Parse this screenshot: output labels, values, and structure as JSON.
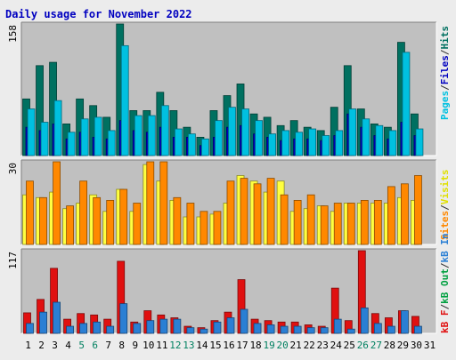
{
  "title": "Daily usage for November 2022",
  "colors": {
    "background": "#ececec",
    "plot_background": "#c0c0c0",
    "title": "#0000c0",
    "pages": "#00c0e0",
    "hits": "#007060",
    "visits": "#ffff40",
    "sites": "#ff8800",
    "kb_in": "#2a7fd4",
    "kb_out": "#00a040",
    "kb_f": "#e01010",
    "weekend_label": "#008060",
    "day_label": "#000000"
  },
  "legends": {
    "top": [
      {
        "text": "Pages",
        "color": "#00c0e0"
      },
      {
        "text": "/",
        "color": "#303030"
      },
      {
        "text": "Files",
        "color": "#0000c0"
      },
      {
        "text": "/",
        "color": "#303030"
      },
      {
        "text": "Hits",
        "color": "#007060"
      }
    ],
    "middle": [
      {
        "text": "Sites",
        "color": "#ff8800"
      },
      {
        "text": "/",
        "color": "#303030"
      },
      {
        "text": "Visits",
        "color": "#e0e000"
      }
    ],
    "bottom": [
      {
        "text": "kB F",
        "color": "#e01010"
      },
      {
        "text": "/",
        "color": "#303030"
      },
      {
        "text": "kB Out",
        "color": "#00a040"
      },
      {
        "text": "/",
        "color": "#303030"
      },
      {
        "text": "kB In",
        "color": "#2a7fd4"
      }
    ]
  },
  "chart_data": [
    {
      "type": "bar",
      "panel": "hits_files_pages",
      "max_label": "158",
      "ylim": [
        0,
        158
      ],
      "categories": [
        "1",
        "2",
        "3",
        "4",
        "5",
        "6",
        "7",
        "8",
        "9",
        "10",
        "11",
        "12",
        "13",
        "14",
        "15",
        "16",
        "17",
        "18",
        "19",
        "20",
        "21",
        "22",
        "23",
        "24",
        "25",
        "26",
        "27",
        "28",
        "29",
        "30",
        "31"
      ],
      "weekend_days": [
        "5",
        "6",
        "12",
        "13",
        "19",
        "20",
        "26",
        "27"
      ],
      "series": [
        {
          "name": "Hits",
          "values": [
            68,
            108,
            112,
            38,
            68,
            60,
            46,
            158,
            54,
            54,
            76,
            54,
            34,
            22,
            54,
            72,
            86,
            50,
            46,
            36,
            42,
            34,
            30,
            58,
            108,
            56,
            38,
            34,
            136,
            50,
            0
          ]
        },
        {
          "name": "Files",
          "values": [
            34,
            30,
            38,
            20,
            28,
            22,
            20,
            42,
            30,
            28,
            34,
            22,
            22,
            12,
            22,
            34,
            36,
            26,
            22,
            18,
            20,
            20,
            18,
            24,
            50,
            34,
            24,
            20,
            40,
            24,
            0
          ]
        },
        {
          "name": "Pages",
          "values": [
            56,
            40,
            66,
            28,
            44,
            46,
            30,
            132,
            48,
            48,
            60,
            32,
            26,
            20,
            42,
            58,
            56,
            42,
            26,
            30,
            28,
            32,
            24,
            30,
            56,
            44,
            36,
            30,
            124,
            32,
            0
          ]
        }
      ]
    },
    {
      "type": "bar",
      "panel": "visits_sites",
      "max_label": "30",
      "ylim": [
        0,
        30
      ],
      "categories": [
        "1",
        "2",
        "3",
        "4",
        "5",
        "6",
        "7",
        "8",
        "9",
        "10",
        "11",
        "12",
        "13",
        "14",
        "15",
        "16",
        "17",
        "18",
        "19",
        "20",
        "21",
        "22",
        "23",
        "24",
        "25",
        "26",
        "27",
        "28",
        "29",
        "30",
        "31"
      ],
      "series": [
        {
          "name": "Visits",
          "values": [
            18,
            17,
            19,
            13,
            15,
            18,
            12,
            20,
            12,
            29,
            23,
            16,
            10,
            10,
            11,
            15,
            25,
            23,
            19,
            23,
            12,
            13,
            14,
            12,
            15,
            15,
            15,
            15,
            17,
            16,
            0
          ]
        },
        {
          "name": "Sites",
          "values": [
            23,
            17,
            30,
            14,
            23,
            17,
            16,
            20,
            15,
            30,
            30,
            17,
            15,
            12,
            12,
            23,
            24,
            22,
            24,
            18,
            16,
            18,
            14,
            15,
            15,
            16,
            16,
            21,
            22,
            25,
            0
          ]
        }
      ]
    },
    {
      "type": "bar",
      "panel": "kb",
      "max_label": "117",
      "ylim": [
        0,
        117
      ],
      "categories": [
        "1",
        "2",
        "3",
        "4",
        "5",
        "6",
        "7",
        "8",
        "9",
        "10",
        "11",
        "12",
        "13",
        "14",
        "15",
        "16",
        "17",
        "18",
        "19",
        "20",
        "21",
        "22",
        "23",
        "24",
        "25",
        "26",
        "27",
        "28",
        "29",
        "30",
        "31"
      ],
      "series": [
        {
          "name": "kB F",
          "values": [
            29,
            48,
            92,
            20,
            28,
            26,
            20,
            102,
            16,
            32,
            26,
            22,
            10,
            8,
            18,
            30,
            76,
            20,
            18,
            16,
            16,
            12,
            10,
            64,
            18,
            117,
            28,
            22,
            32,
            24,
            0
          ]
        },
        {
          "name": "kB In",
          "values": [
            14,
            30,
            44,
            10,
            14,
            16,
            10,
            42,
            14,
            18,
            20,
            20,
            8,
            6,
            16,
            22,
            34,
            14,
            12,
            10,
            10,
            8,
            8,
            20,
            6,
            36,
            14,
            10,
            32,
            10,
            0
          ]
        }
      ]
    }
  ]
}
